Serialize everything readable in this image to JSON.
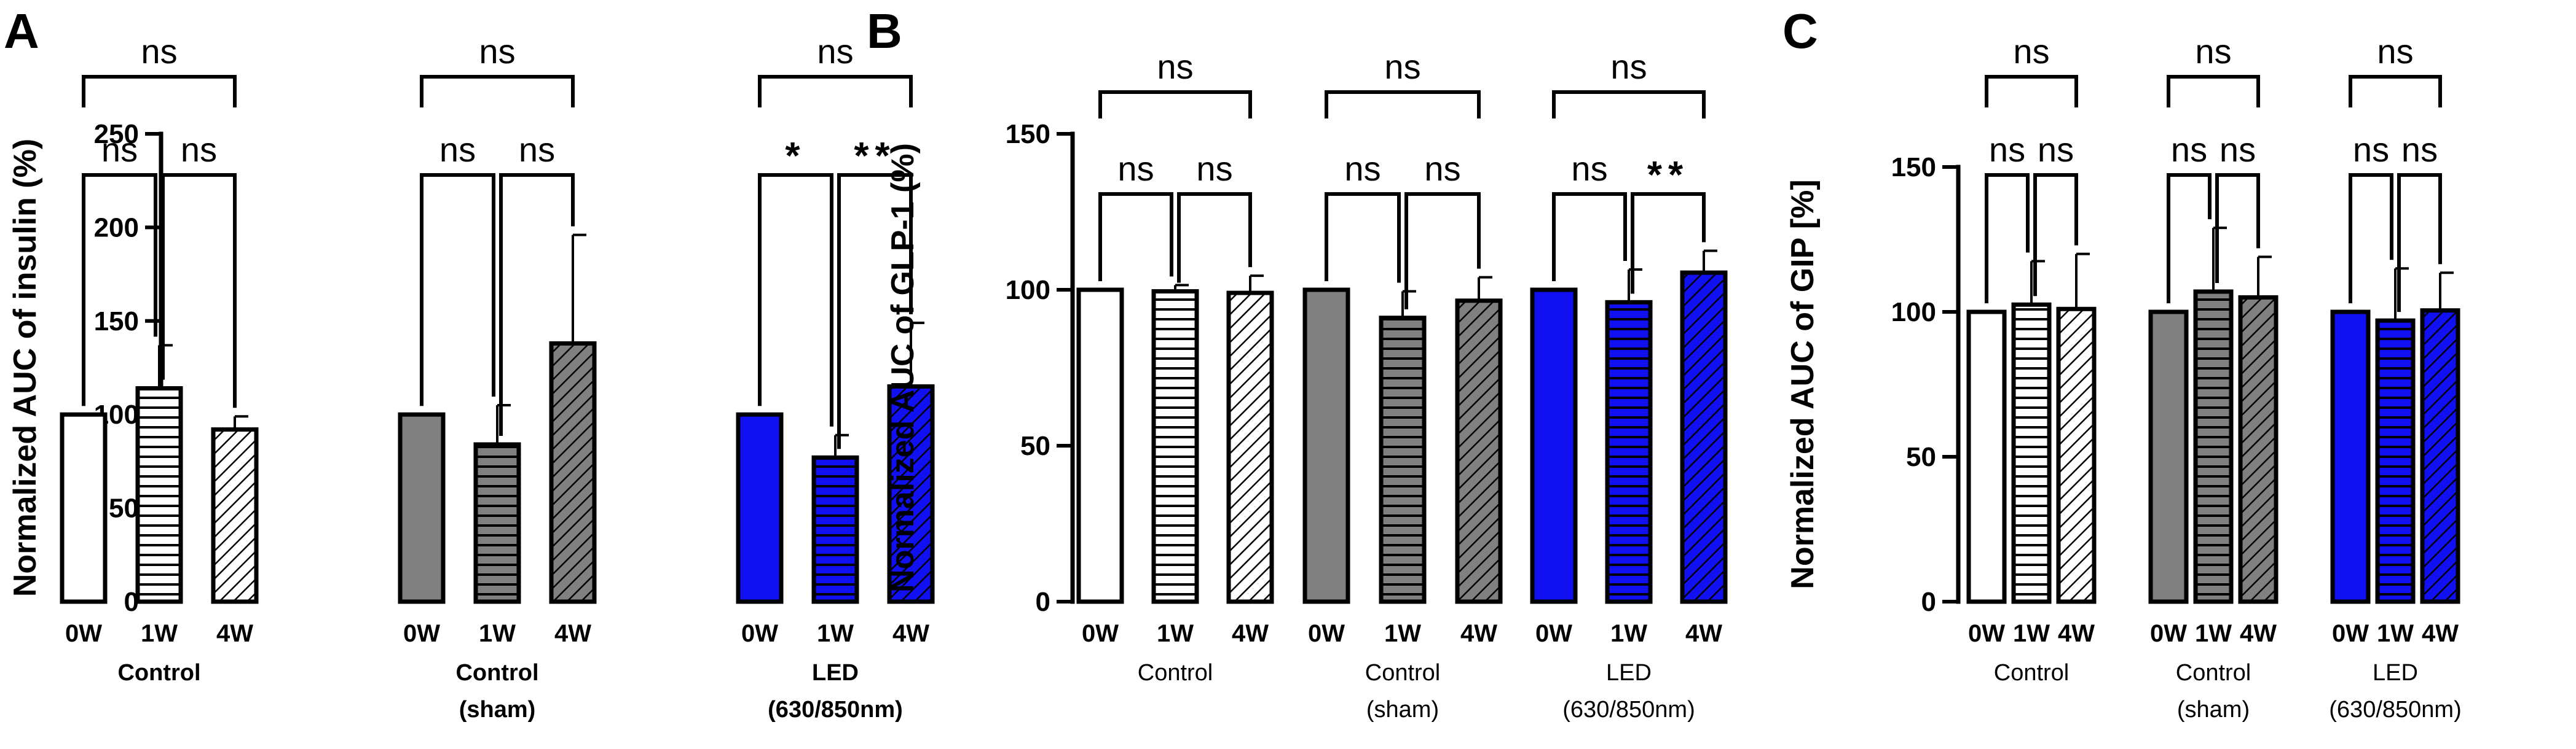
{
  "colors": {
    "control": "#ffffff",
    "sham": "#808080",
    "led": "#1010f2",
    "ink": "#000000"
  },
  "chart_data": [
    {
      "type": "bar",
      "panel_label": "A",
      "ylabel": "Normalized AUC of insulin (%)",
      "ylim": [
        0,
        250
      ],
      "yticks": [
        "0",
        "50",
        "100",
        "150",
        "200",
        "250"
      ],
      "bold_groups": true,
      "groups": [
        {
          "label_lines": [
            "Control"
          ],
          "color": "control"
        },
        {
          "label_lines": [
            "Control",
            "(sham)"
          ],
          "color": "sham"
        },
        {
          "label_lines": [
            "LED",
            "(630/850nm)"
          ],
          "color": "led"
        }
      ],
      "categories": [
        "0W",
        "1W",
        "4W",
        "0W",
        "1W",
        "4W",
        "0W",
        "1W",
        "4W"
      ],
      "patterns": [
        "solid",
        "horizontal",
        "diagonal",
        "solid",
        "horizontal",
        "diagonal",
        "solid",
        "horizontal",
        "diagonal"
      ],
      "values": [
        100,
        114,
        92,
        100,
        84,
        138,
        100,
        77,
        115
      ],
      "errors": [
        0,
        23,
        7,
        0,
        21,
        58,
        0,
        12,
        34
      ],
      "significance": [
        {
          "group": 0,
          "pair": "0W-4W",
          "label": "ns"
        },
        {
          "group": 0,
          "pair": "0W-1W",
          "label": "ns"
        },
        {
          "group": 0,
          "pair": "1W-4W",
          "label": "ns"
        },
        {
          "group": 1,
          "pair": "0W-4W",
          "label": "ns"
        },
        {
          "group": 1,
          "pair": "0W-1W",
          "label": "ns"
        },
        {
          "group": 1,
          "pair": "1W-4W",
          "label": "ns"
        },
        {
          "group": 2,
          "pair": "0W-4W",
          "label": "ns"
        },
        {
          "group": 2,
          "pair": "0W-1W",
          "label": "*"
        },
        {
          "group": 2,
          "pair": "1W-4W",
          "label": "**"
        }
      ]
    },
    {
      "type": "bar",
      "panel_label": "B",
      "ylabel": "Normalized AUC of GLP-1 (%)",
      "ylim": [
        0,
        150
      ],
      "yticks": [
        "0",
        "50",
        "100",
        "150"
      ],
      "bold_groups": false,
      "groups": [
        {
          "label_lines": [
            "Control"
          ],
          "color": "control"
        },
        {
          "label_lines": [
            "Control",
            "(sham)"
          ],
          "color": "sham"
        },
        {
          "label_lines": [
            "LED",
            "(630/850nm)"
          ],
          "color": "led"
        }
      ],
      "categories": [
        "0W",
        "1W",
        "4W",
        "0W",
        "1W",
        "4W",
        "0W",
        "1W",
        "4W"
      ],
      "patterns": [
        "solid",
        "horizontal",
        "diagonal",
        "solid",
        "horizontal",
        "diagonal",
        "solid",
        "horizontal",
        "diagonal"
      ],
      "values": [
        100,
        99.5,
        99,
        100,
        91,
        96.5,
        100,
        96,
        105.5
      ],
      "errors": [
        0,
        2,
        5.5,
        0,
        8.5,
        7.5,
        0,
        10.5,
        7
      ],
      "significance": [
        {
          "group": 0,
          "pair": "0W-4W",
          "label": "ns"
        },
        {
          "group": 0,
          "pair": "0W-1W",
          "label": "ns"
        },
        {
          "group": 0,
          "pair": "1W-4W",
          "label": "ns"
        },
        {
          "group": 1,
          "pair": "0W-4W",
          "label": "ns"
        },
        {
          "group": 1,
          "pair": "0W-1W",
          "label": "ns"
        },
        {
          "group": 1,
          "pair": "1W-4W",
          "label": "ns"
        },
        {
          "group": 2,
          "pair": "0W-4W",
          "label": "ns"
        },
        {
          "group": 2,
          "pair": "0W-1W",
          "label": "ns"
        },
        {
          "group": 2,
          "pair": "1W-4W",
          "label": "**"
        }
      ]
    },
    {
      "type": "bar",
      "panel_label": "C",
      "ylabel": "Normalized AUC of GIP [%]",
      "ylim": [
        0,
        150
      ],
      "yticks": [
        "0",
        "50",
        "100",
        "150"
      ],
      "bold_groups": false,
      "groups": [
        {
          "label_lines": [
            "Control"
          ],
          "color": "control"
        },
        {
          "label_lines": [
            "Control",
            "(sham)"
          ],
          "color": "sham"
        },
        {
          "label_lines": [
            "LED",
            "(630/850nm)"
          ],
          "color": "led"
        }
      ],
      "categories": [
        "0W",
        "1W",
        "4W",
        "0W",
        "1W",
        "4W",
        "0W",
        "1W",
        "4W"
      ],
      "patterns": [
        "solid",
        "horizontal",
        "diagonal",
        "solid",
        "horizontal",
        "diagonal",
        "solid",
        "horizontal",
        "diagonal"
      ],
      "values": [
        100,
        102.5,
        101,
        100,
        107,
        105,
        100,
        97,
        100.5
      ],
      "errors": [
        0,
        15,
        19,
        0,
        22,
        14,
        0,
        18,
        13
      ],
      "significance": [
        {
          "group": 0,
          "pair": "0W-4W",
          "label": "ns"
        },
        {
          "group": 0,
          "pair": "0W-1W",
          "label": "ns"
        },
        {
          "group": 0,
          "pair": "1W-4W",
          "label": "ns"
        },
        {
          "group": 1,
          "pair": "0W-4W",
          "label": "ns"
        },
        {
          "group": 1,
          "pair": "0W-1W",
          "label": "ns"
        },
        {
          "group": 1,
          "pair": "1W-4W",
          "label": "ns"
        },
        {
          "group": 2,
          "pair": "0W-4W",
          "label": "ns"
        },
        {
          "group": 2,
          "pair": "0W-1W",
          "label": "ns"
        },
        {
          "group": 2,
          "pair": "1W-4W",
          "label": "ns"
        }
      ]
    }
  ]
}
